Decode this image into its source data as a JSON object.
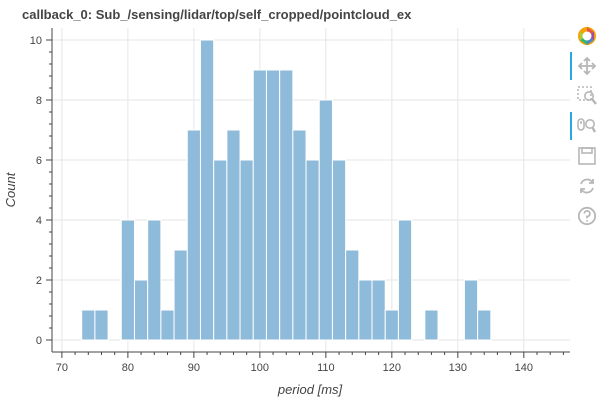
{
  "title": "callback_0: Sub_/sensing/lidar/top/self_cropped/pointcloud_ex",
  "toolbar": {
    "items": [
      "bokeh-logo-icon",
      "pan-icon",
      "box-zoom-icon",
      "wheel-zoom-icon",
      "save-icon",
      "reset-icon",
      "help-icon"
    ],
    "active": [
      "pan-icon",
      "wheel-zoom-icon"
    ]
  },
  "colors": {
    "bar_fill": "#8fbbdb",
    "bar_stroke": "#ffffff",
    "grid": "#e6e6e6",
    "axis": "#444444",
    "toolbar_icon": "#b7b7b7",
    "active_tool": "#26aae1"
  },
  "chart_data": {
    "type": "bar",
    "title": "callback_0: Sub_/sensing/lidar/top/self_cropped/pointcloud_ex",
    "xlabel": "period [ms]",
    "ylabel": "Count",
    "xlim": [
      68.5,
      147
    ],
    "ylim": [
      -0.4,
      10.4
    ],
    "x_ticks": [
      70,
      80,
      90,
      100,
      110,
      120,
      130,
      140
    ],
    "y_ticks": [
      0,
      2,
      4,
      6,
      8,
      10
    ],
    "grid": true,
    "bin_width": 2,
    "bins": [
      {
        "x0": 73,
        "count": 1
      },
      {
        "x0": 75,
        "count": 1
      },
      {
        "x0": 79,
        "count": 4
      },
      {
        "x0": 81,
        "count": 2
      },
      {
        "x0": 83,
        "count": 4
      },
      {
        "x0": 85,
        "count": 1
      },
      {
        "x0": 87,
        "count": 3
      },
      {
        "x0": 89,
        "count": 7
      },
      {
        "x0": 91,
        "count": 10
      },
      {
        "x0": 93,
        "count": 6
      },
      {
        "x0": 95,
        "count": 7
      },
      {
        "x0": 97,
        "count": 6
      },
      {
        "x0": 99,
        "count": 9
      },
      {
        "x0": 101,
        "count": 9
      },
      {
        "x0": 103,
        "count": 9
      },
      {
        "x0": 105,
        "count": 7
      },
      {
        "x0": 107,
        "count": 6
      },
      {
        "x0": 109,
        "count": 8
      },
      {
        "x0": 111,
        "count": 6
      },
      {
        "x0": 113,
        "count": 3
      },
      {
        "x0": 115,
        "count": 2
      },
      {
        "x0": 117,
        "count": 2
      },
      {
        "x0": 119,
        "count": 1
      },
      {
        "x0": 121,
        "count": 4
      },
      {
        "x0": 123,
        "count": 0
      },
      {
        "x0": 125,
        "count": 1
      },
      {
        "x0": 127,
        "count": 0
      },
      {
        "x0": 129,
        "count": 0
      },
      {
        "x0": 131,
        "count": 2
      },
      {
        "x0": 133,
        "count": 1
      },
      {
        "x0": 135,
        "count": 0
      },
      {
        "x0": 137,
        "count": 0
      }
    ]
  }
}
